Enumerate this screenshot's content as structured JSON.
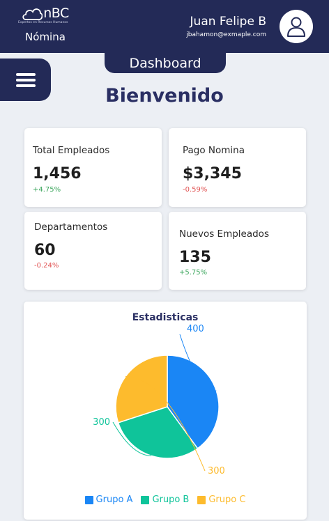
{
  "header": {
    "brand_name": "nBC",
    "brand_tagline": "Expertos en Recursos Humanos",
    "module": "Nómina",
    "user_name": "Juan Felipe B",
    "user_email": "jbahamon@exmaple.com"
  },
  "nav": {
    "tab_label": "Dashboard",
    "menu_icon": "hamburger-menu-icon"
  },
  "main": {
    "welcome": "Bienvenido"
  },
  "cards": [
    {
      "title": "Total Empleados",
      "value": "1,456",
      "change": "+4.75%",
      "trend": "up"
    },
    {
      "title": "Pago Nomina",
      "value": "$3,345",
      "change": "-0.59%",
      "trend": "down"
    },
    {
      "title": "Departamentos",
      "value": "60",
      "change": "-0.24%",
      "trend": "down"
    },
    {
      "title": "Nuevos Empleados",
      "value": "135",
      "change": "+5.75%",
      "trend": "up"
    }
  ],
  "colors": {
    "primary": "#232a57",
    "positive": "#3aa55b",
    "negative": "#e05050"
  },
  "chart_data": {
    "type": "pie",
    "title": "Estadisticas",
    "categories": [
      "Grupo A",
      "Grupo B",
      "Grupo C"
    ],
    "values": [
      400,
      300,
      300
    ],
    "data_labels": [
      "400",
      "300",
      "300"
    ],
    "colors": [
      "#1a86f5",
      "#0fc49a",
      "#fdbb2d"
    ],
    "legend_position": "bottom"
  }
}
